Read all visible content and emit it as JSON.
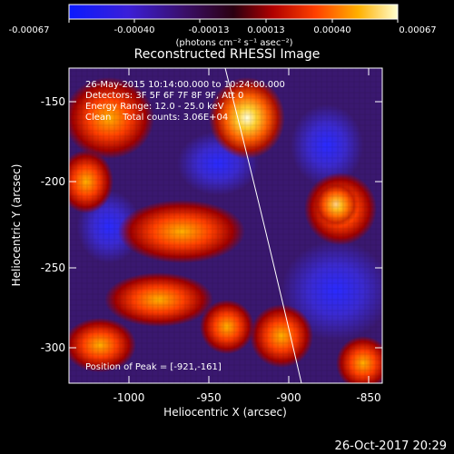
{
  "colorbar": {
    "ticks": [
      "-0.00067",
      "-0.00040",
      "-0.00013",
      "0.00013",
      "0.00040",
      "0.00067"
    ],
    "unit_label": "(photons cm⁻² s⁻¹ asec⁻²)"
  },
  "image": {
    "title": "Reconstructed RHESSI Image",
    "annotations": {
      "time_range": "26-May-2015 10:14:00.000 to 10:24:00.000",
      "detectors": "Detectors: 3F 5F 6F 7F 8F 9F, Att 0",
      "energy": "Energy Range: 12.0 - 25.0 keV",
      "method": "Clean    Total counts: 3.06E+04",
      "peak": "Position of Peak = [-921,-161]"
    },
    "axes": {
      "xlabel": "Heliocentric X (arcsec)",
      "ylabel": "Heliocentric Y (arcsec)",
      "xticks": [
        "-1000",
        "-950",
        "-900",
        "-850"
      ],
      "yticks": [
        "-150",
        "-200",
        "-250",
        "-300"
      ]
    }
  },
  "footer": {
    "timestamp": "26-Oct-2017 20:29"
  }
}
